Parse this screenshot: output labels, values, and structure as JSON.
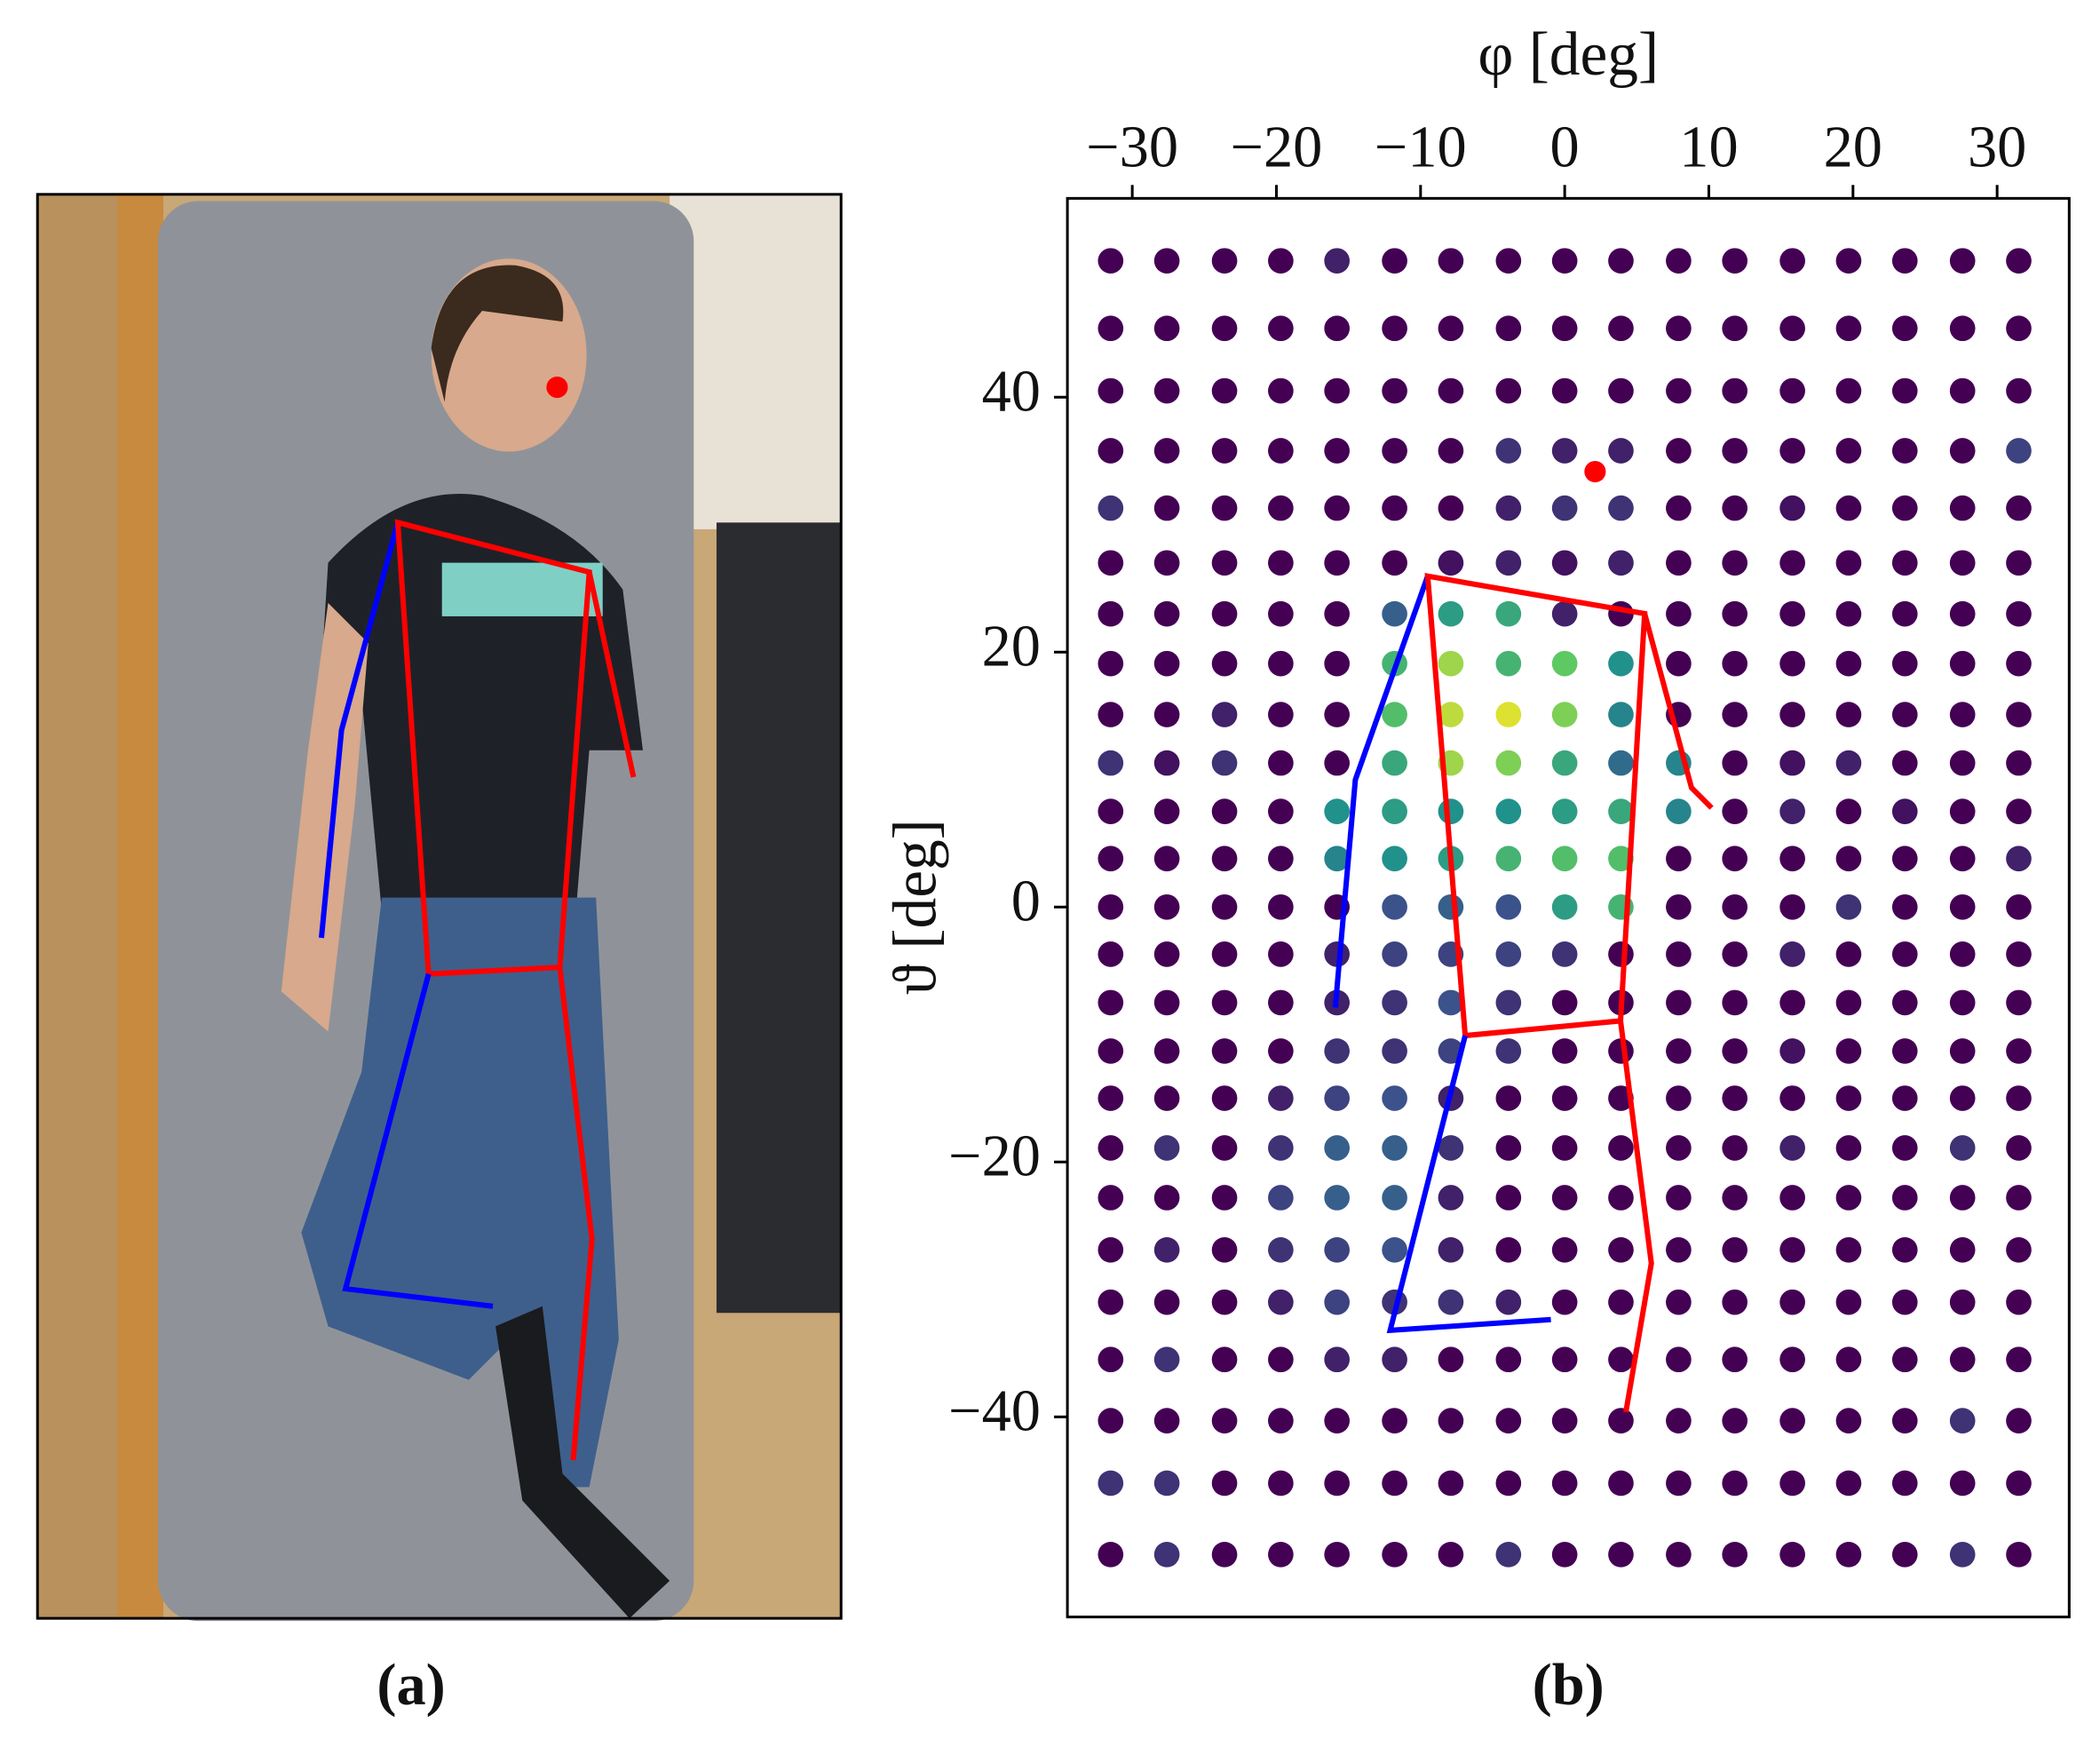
{
  "chart_data": {
    "type": "dot-grid",
    "xlabel": "φ [deg]",
    "ylabel": "ϑ [deg]",
    "xlim": [
      -34.5,
      35
    ],
    "ylim": [
      -55.7,
      55.6
    ],
    "xticks": [
      {
        "value": -30,
        "label": "−30"
      },
      {
        "value": -20,
        "label": "−20"
      },
      {
        "value": -10,
        "label": "−10"
      },
      0,
      10,
      20,
      30
    ],
    "yticks": [
      {
        "value": -40,
        "label": "−40"
      },
      {
        "value": -20,
        "label": "−20"
      },
      0,
      20,
      40
    ],
    "x": [
      -31.5,
      -27.6,
      -23.6,
      -19.7,
      -15.8,
      -11.8,
      -7.9,
      -3.9,
      0,
      3.9,
      7.9,
      11.8,
      15.8,
      19.7,
      23.6,
      27.6,
      31.5
    ],
    "y": [
      50.7,
      45.4,
      40.5,
      35.8,
      31.3,
      27.0,
      23.0,
      19.1,
      15.1,
      11.3,
      7.5,
      3.8,
      0,
      -3.7,
      -7.5,
      -11.3,
      -15.0,
      -18.9,
      -22.8,
      -26.9,
      -31.0,
      -35.5,
      -40.3,
      -45.2,
      -50.8
    ],
    "values": [
      [
        0,
        0,
        0,
        0,
        0.1,
        0,
        0,
        0,
        0,
        0,
        0,
        0,
        0,
        0,
        0,
        0,
        0
      ],
      [
        0,
        0,
        0,
        0,
        0,
        0,
        0,
        0,
        0,
        0,
        0,
        0,
        0,
        0,
        0,
        0,
        0
      ],
      [
        0,
        0,
        0,
        0,
        0,
        0,
        0,
        0,
        0,
        0,
        0,
        0,
        0,
        0,
        0,
        0,
        0
      ],
      [
        0,
        0,
        0,
        0,
        0,
        0,
        0,
        0.15,
        0.1,
        0.1,
        0,
        0,
        0,
        0,
        0,
        0,
        0.2
      ],
      [
        0.15,
        0,
        0,
        0,
        0,
        0,
        0,
        0.1,
        0.15,
        0.15,
        0,
        0,
        0.05,
        0,
        0,
        0,
        0
      ],
      [
        0,
        0,
        0,
        0,
        0,
        0,
        0.05,
        0.1,
        0.05,
        0.1,
        0,
        0,
        0,
        0,
        0,
        0,
        0
      ],
      [
        0,
        0,
        0,
        0,
        0,
        0.3,
        0.55,
        0.6,
        0.1,
        0,
        0,
        0,
        0,
        0,
        0,
        0,
        0
      ],
      [
        0,
        0,
        0,
        0,
        0,
        0.65,
        0.85,
        0.65,
        0.75,
        0.5,
        0,
        0,
        0,
        0,
        0,
        0,
        0
      ],
      [
        0,
        0,
        0.1,
        0,
        0,
        0.7,
        0.9,
        0.95,
        0.8,
        0.45,
        0,
        0,
        0,
        0,
        0,
        0,
        0
      ],
      [
        0.15,
        0.05,
        0.15,
        0,
        0,
        0.6,
        0.85,
        0.8,
        0.6,
        0.35,
        0.45,
        0,
        0.05,
        0.1,
        0,
        0,
        0
      ],
      [
        0,
        0,
        0,
        0,
        0.5,
        0.55,
        0.5,
        0.5,
        0.55,
        0.6,
        0.45,
        0,
        0.1,
        0,
        0.05,
        0,
        0
      ],
      [
        0,
        0,
        0,
        0,
        0.45,
        0.5,
        0.55,
        0.65,
        0.7,
        0.7,
        0,
        0,
        0,
        0,
        0,
        0,
        0.1
      ],
      [
        0,
        0,
        0,
        0,
        0,
        0.25,
        0.3,
        0.25,
        0.55,
        0.65,
        0,
        0,
        0,
        0.15,
        0,
        0,
        0
      ],
      [
        0,
        0,
        0,
        0,
        0.1,
        0.2,
        0.2,
        0.2,
        0.15,
        0,
        0,
        0,
        0.1,
        0,
        0,
        0,
        0
      ],
      [
        0,
        0,
        0,
        0,
        0.1,
        0.15,
        0.25,
        0.15,
        0,
        0,
        0,
        0,
        0,
        0,
        0,
        0,
        0
      ],
      [
        0,
        0,
        0,
        0,
        0.15,
        0.15,
        0.2,
        0.15,
        0,
        0,
        0,
        0,
        0.05,
        0,
        0,
        0,
        0
      ],
      [
        0,
        0,
        0,
        0.1,
        0.2,
        0.25,
        0.1,
        0,
        0,
        0,
        0,
        0,
        0,
        0,
        0,
        0,
        0
      ],
      [
        0,
        0.15,
        0,
        0.15,
        0.3,
        0.3,
        0.15,
        0,
        0,
        0,
        0,
        0,
        0.1,
        0,
        0,
        0.15,
        0
      ],
      [
        0,
        0,
        0,
        0.2,
        0.3,
        0.3,
        0.1,
        0,
        0,
        0,
        0,
        0,
        0,
        0,
        0,
        0,
        0
      ],
      [
        0,
        0.1,
        0,
        0.15,
        0.2,
        0.25,
        0.1,
        0,
        0,
        0,
        0,
        0,
        0,
        0,
        0,
        0,
        0
      ],
      [
        0,
        0,
        0,
        0.1,
        0.2,
        0.15,
        0.15,
        0.1,
        0,
        0,
        0,
        0,
        0,
        0,
        0,
        0,
        0
      ],
      [
        0,
        0.15,
        0,
        0,
        0.1,
        0.1,
        0,
        0,
        0,
        0,
        0,
        0,
        0,
        0,
        0,
        0,
        0
      ],
      [
        0,
        0,
        0,
        0,
        0,
        0,
        0,
        0,
        0,
        0,
        0,
        0,
        0,
        0,
        0,
        0.15,
        0
      ],
      [
        0.15,
        0.15,
        0,
        0,
        0,
        0,
        0,
        0,
        0,
        0,
        0,
        0,
        0,
        0,
        0,
        0,
        0
      ],
      [
        0,
        0.15,
        0,
        0,
        0,
        0,
        0,
        0.15,
        0,
        0,
        0,
        0,
        0,
        0,
        0,
        0.15,
        0
      ]
    ],
    "captions": [
      "(a)",
      "(b)"
    ]
  }
}
